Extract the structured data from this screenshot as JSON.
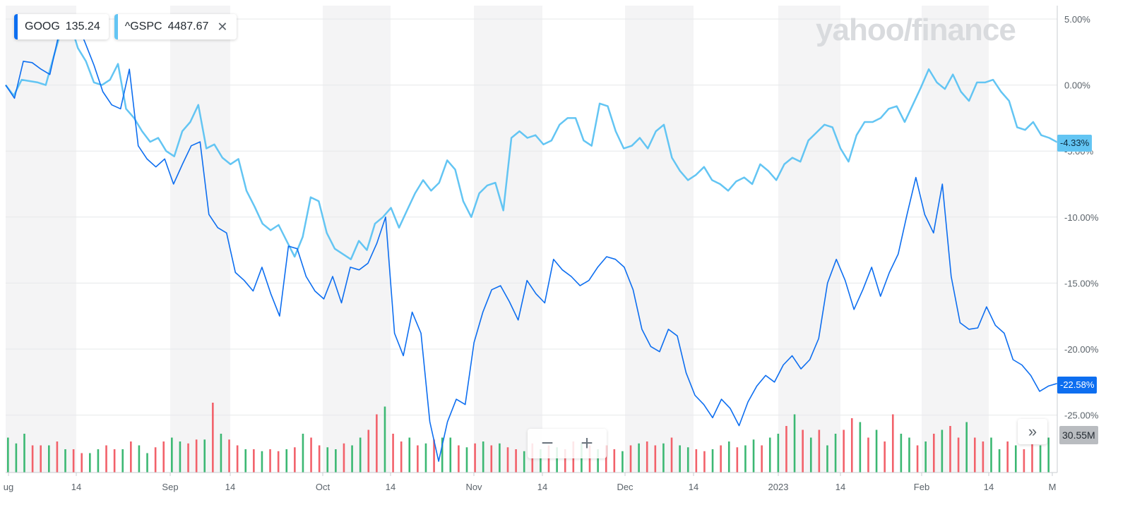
{
  "legend": {
    "goog": {
      "symbol": "GOOG",
      "price": "135.24",
      "color": "#0d6ef0"
    },
    "spx": {
      "symbol": "^GSPC",
      "price": "4487.67",
      "color": "#63c5f3"
    },
    "close_icon": "close-icon"
  },
  "watermark": "yahoo/finance",
  "controls": {
    "zoom_out": "−",
    "zoom_in": "+",
    "expand": "»"
  },
  "chart_data": {
    "type": "line",
    "x_ticks": [
      "ug",
      "14",
      "Sep",
      "14",
      "Oct",
      "14",
      "Nov",
      "14",
      "Dec",
      "14",
      "2023",
      "14",
      "Feb",
      "14",
      "M"
    ],
    "y_ticks": [
      "5.00%",
      "0.00%",
      "-5.00%",
      "-10.00%",
      "-15.00%",
      "-20.00%",
      "-25.00%"
    ],
    "ylim": [
      -29.5,
      6
    ],
    "grid": true,
    "series": [
      {
        "name": "GOOG",
        "color": "#0d6ef0",
        "last_label": "-22.58%",
        "values": [
          0,
          -1,
          1.8,
          1.7,
          1.2,
          0.8,
          3.8,
          5.2,
          4.8,
          3.2,
          1.5,
          -0.5,
          -1.5,
          -1.8,
          1.2,
          -4.6,
          -5.6,
          -6.2,
          -5.6,
          -7.5,
          -6.0,
          -4.6,
          -4.3,
          -9.8,
          -10.8,
          -11.2,
          -14.2,
          -14.8,
          -15.6,
          -13.8,
          -15.8,
          -17.5,
          -12.2,
          -12.4,
          -14.5,
          -15.6,
          -16.2,
          -14.5,
          -16.5,
          -13.8,
          -14.0,
          -13.5,
          -12.0,
          -10.0,
          -18.8,
          -20.5,
          -17.2,
          -18.8,
          -25.5,
          -28.5,
          -25.5,
          -23.8,
          -24.2,
          -19.5,
          -17.2,
          -15.5,
          -15.2,
          -16.4,
          -17.8,
          -14.8,
          -15.8,
          -16.5,
          -13.2,
          -14.0,
          -14.5,
          -15.2,
          -14.8,
          -13.8,
          -13.0,
          -13.2,
          -13.8,
          -15.5,
          -18.5,
          -19.8,
          -20.2,
          -18.5,
          -19.0,
          -21.8,
          -23.5,
          -24.2,
          -25.2,
          -23.8,
          -24.5,
          -25.8,
          -24.0,
          -22.8,
          -22.0,
          -22.5,
          -21.2,
          -20.5,
          -21.5,
          -20.8,
          -19.2,
          -15.0,
          -13.2,
          -14.8,
          -17.0,
          -15.5,
          -13.8,
          -16.0,
          -14.2,
          -12.8,
          -9.8,
          -7.0,
          -9.8,
          -11.2,
          -7.5,
          -14.5,
          -18.0,
          -18.5,
          -18.4,
          -16.8,
          -18.2,
          -18.8,
          -20.8,
          -21.2,
          -22.0,
          -23.2,
          -22.8,
          -22.6
        ],
        "last_value": -22.58
      },
      {
        "name": "^GSPC",
        "color": "#63c5f3",
        "last_label": "-4.33%",
        "values": [
          0,
          -0.8,
          0.4,
          0.3,
          0.2,
          0.0,
          2.2,
          4.3,
          4.8,
          2.8,
          1.8,
          0.2,
          0.0,
          0.4,
          1.6,
          -1.8,
          -2.5,
          -3.5,
          -4.3,
          -4.0,
          -5.0,
          -5.4,
          -3.5,
          -2.8,
          -1.5,
          -4.8,
          -4.5,
          -5.5,
          -6.0,
          -5.6,
          -8.0,
          -9.2,
          -10.5,
          -11.0,
          -10.6,
          -11.8,
          -13.0,
          -11.5,
          -8.5,
          -8.8,
          -11.2,
          -12.4,
          -12.8,
          -13.2,
          -11.8,
          -12.5,
          -10.5,
          -10.0,
          -9.3,
          -10.8,
          -9.5,
          -8.2,
          -7.2,
          -8.0,
          -7.4,
          -5.7,
          -6.4,
          -8.8,
          -10.0,
          -8.2,
          -7.6,
          -7.4,
          -9.5,
          -4.0,
          -3.5,
          -4.0,
          -3.8,
          -4.5,
          -4.2,
          -3.0,
          -2.5,
          -2.5,
          -4.2,
          -4.6,
          -1.4,
          -1.6,
          -3.5,
          -4.8,
          -4.6,
          -4.0,
          -4.8,
          -3.5,
          -3.0,
          -5.5,
          -6.5,
          -7.2,
          -6.8,
          -6.2,
          -7.2,
          -7.5,
          -8.0,
          -7.3,
          -7.0,
          -7.5,
          -6.0,
          -6.5,
          -7.2,
          -6.0,
          -5.5,
          -5.8,
          -4.2,
          -3.6,
          -3.0,
          -3.2,
          -4.8,
          -5.8,
          -3.8,
          -2.8,
          -2.8,
          -2.5,
          -1.8,
          -1.6,
          -2.8,
          -1.5,
          -0.2,
          1.2,
          0.2,
          -0.3,
          0.8,
          -0.5,
          -1.2,
          0.2,
          0.2,
          0.4,
          -0.5,
          -1.2,
          -3.2,
          -3.4,
          -2.8,
          -3.8,
          -4.0,
          -4.33
        ],
        "last_value": -4.33
      }
    ],
    "volume": {
      "last_label": "30.55M",
      "up_color": "#3cb873",
      "down_color": "#f2616a",
      "values": [
        18,
        15,
        20,
        14,
        14,
        14,
        16,
        12,
        12,
        10,
        10,
        12,
        14,
        12,
        12,
        16,
        14,
        10,
        13,
        16,
        18,
        16,
        15,
        17,
        17,
        36,
        20,
        17,
        14,
        12,
        12,
        11,
        12,
        11,
        12,
        13,
        20,
        18,
        14,
        13,
        12,
        15,
        14,
        18,
        22,
        30,
        34,
        20,
        16,
        18,
        14,
        15,
        17,
        18,
        18,
        14,
        13,
        15,
        16,
        14,
        15,
        13,
        12,
        11,
        15,
        12,
        14,
        13,
        12,
        16,
        15,
        14,
        12,
        14,
        12,
        11,
        14,
        15,
        16,
        14,
        15,
        18,
        14,
        13,
        12,
        11,
        12,
        14,
        16,
        13,
        14,
        17,
        14,
        18,
        20,
        24,
        30,
        22,
        18,
        22,
        14,
        20,
        22,
        28,
        26,
        18,
        22,
        16,
        30,
        20,
        18,
        14,
        16,
        20,
        22,
        24,
        18,
        26,
        18,
        16,
        18,
        12,
        16,
        14,
        12,
        16,
        14,
        18
      ],
      "up": [
        1,
        1,
        1,
        0,
        0,
        1,
        0,
        1,
        0,
        0,
        1,
        1,
        0,
        0,
        1,
        0,
        1,
        1,
        0,
        0,
        1,
        1,
        0,
        0,
        1,
        0,
        1,
        0,
        0,
        1,
        0,
        1,
        0,
        0,
        1,
        0,
        1,
        0,
        0,
        1,
        1,
        0,
        1,
        1,
        0,
        0,
        1,
        0,
        0,
        1,
        0,
        1,
        0,
        1,
        1,
        0,
        1,
        0,
        1,
        0,
        1,
        0,
        0,
        1,
        0,
        1,
        0,
        1,
        0,
        0,
        1,
        0,
        1,
        0,
        0,
        1,
        0,
        1,
        0,
        0,
        1,
        0,
        1,
        1,
        0,
        0,
        1,
        0,
        1,
        0,
        1,
        1,
        0,
        1,
        1,
        0,
        1,
        0,
        1,
        0,
        1,
        1,
        0,
        0,
        1,
        0,
        1,
        0,
        0,
        1,
        1,
        0,
        1,
        0,
        1,
        0,
        0,
        1,
        0,
        0,
        1,
        1,
        0,
        1,
        0,
        0,
        1,
        1
      ]
    }
  }
}
